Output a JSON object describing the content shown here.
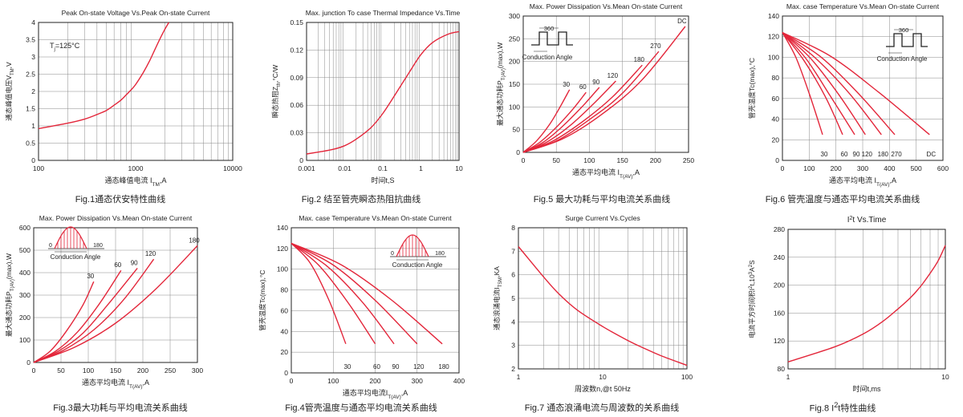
{
  "colors": {
    "curve": "#e3263a",
    "axis": "#222222",
    "grid": "#888888"
  },
  "charts": [
    {
      "id": "fig1",
      "title": "Peak On-state Voltage Vs.Peak On-state Current",
      "xlabel": "通态峰值电流 I",
      "xlabel_sub": "TM",
      "xlabel_tail": ",A",
      "ylabel": "通态峰值电压V",
      "ylabel_sub": "TM",
      "ylabel_tail": ",V",
      "caption": "Fig.1通态伏安特性曲线",
      "annotation": "T",
      "annotation_sub": "j",
      "annotation_tail": "=125°C",
      "xscale": "log",
      "xlim": [
        100,
        10000
      ],
      "xticks": [
        "100",
        "1000",
        "10000"
      ],
      "ylim": [
        0,
        4
      ],
      "yticks": [
        "0",
        "0.5",
        "1",
        "1.5",
        "2",
        "2.5",
        "3",
        "3.5",
        "4"
      ],
      "chart_data": {
        "type": "line",
        "x": [
          100,
          200,
          300,
          400,
          500,
          600,
          700,
          800,
          900,
          1000,
          1200,
          1400,
          1600,
          1800,
          2000,
          2200
        ],
        "series": [
          {
            "values": [
              0.92,
              1.08,
              1.2,
              1.33,
              1.45,
              1.6,
              1.74,
              1.9,
              2.05,
              2.2,
              2.55,
              2.9,
              3.25,
              3.55,
              3.8,
              4.0
            ]
          }
        ]
      }
    },
    {
      "id": "fig2",
      "title": "Max. junction To case Thermal Impedance Vs.Time",
      "xlabel": "时间t,S",
      "ylabel": "瞬态热阻Z",
      "ylabel_sub": "th",
      "ylabel_tail": ",°C/W",
      "caption": "Fig.2 结至管壳瞬态热阻抗曲线",
      "xscale": "log",
      "xlim": [
        0.001,
        10
      ],
      "xticks": [
        "0.001",
        "0.01",
        "0.1",
        "1",
        "10"
      ],
      "ylim": [
        0,
        0.15
      ],
      "yticks": [
        "0",
        "0.03",
        "0.06",
        "0.09",
        "0.12",
        "0.15"
      ],
      "chart_data": {
        "type": "line",
        "x": [
          0.001,
          0.002,
          0.005,
          0.01,
          0.02,
          0.05,
          0.1,
          0.2,
          0.5,
          1,
          2,
          5,
          10
        ],
        "series": [
          {
            "values": [
              0.007,
              0.009,
              0.012,
              0.016,
              0.023,
              0.036,
              0.051,
              0.07,
              0.096,
              0.115,
              0.128,
              0.137,
              0.14
            ]
          }
        ]
      }
    },
    {
      "id": "fig5",
      "title": "Max. Power Dissipation Vs.Mean On-state Current",
      "xlabel": "通态平均电流 I",
      "xlabel_sub": "T(AV)",
      "xlabel_tail": ",A",
      "ylabel": "最大通态功耗P",
      "ylabel_sub": "T(AV)",
      "ylabel_tail": "(max),W",
      "caption": "Fig.5 最大功耗与平均电流关系曲线",
      "inset": "square",
      "inset_label": "Conduction Angle",
      "inset_top": "360",
      "xlim": [
        0,
        250
      ],
      "xticks": [
        "0",
        "50",
        "100",
        "150",
        "200",
        "250"
      ],
      "ylim": [
        0,
        300
      ],
      "yticks": [
        "0",
        "50",
        "100",
        "150",
        "200",
        "250",
        "300"
      ],
      "chart_data": {
        "type": "line",
        "series": [
          {
            "name": "30",
            "x": [
              0,
              20,
              40,
              55,
              70
            ],
            "values": [
              0,
              25,
              62,
              98,
              138
            ]
          },
          {
            "name": "60",
            "x": [
              0,
              25,
              50,
              75,
              95
            ],
            "values": [
              0,
              22,
              55,
              95,
              132
            ]
          },
          {
            "name": "90",
            "x": [
              0,
              30,
              60,
              90,
              115
            ],
            "values": [
              0,
              22,
              58,
              102,
              143
            ]
          },
          {
            "name": "120",
            "x": [
              0,
              35,
              70,
              105,
              140
            ],
            "values": [
              0,
              22,
              58,
              105,
              157
            ]
          },
          {
            "name": "180",
            "x": [
              0,
              45,
              90,
              135,
              180
            ],
            "values": [
              0,
              25,
              68,
              122,
              192
            ]
          },
          {
            "name": "270",
            "x": [
              0,
              50,
              100,
              150,
              205
            ],
            "values": [
              0,
              25,
              72,
              130,
              222
            ]
          },
          {
            "name": "DC",
            "x": [
              0,
              60,
              120,
              180,
              245
            ],
            "values": [
              0,
              30,
              85,
              160,
              277
            ]
          }
        ]
      }
    },
    {
      "id": "fig6",
      "title": "Max. case Temperature Vs.Mean On-state Current",
      "xlabel": "通态平均电流 I",
      "xlabel_sub": "T(AV)",
      "xlabel_tail": ",A",
      "ylabel": "管壳温度Tc(max),°C",
      "caption": "Fig.6 管壳温度与通态平均电流关系曲线",
      "inset": "square",
      "inset_label": "Conduction Angle",
      "inset_top": "360",
      "xlim": [
        0,
        600
      ],
      "xticks": [
        "0",
        "100",
        "200",
        "300",
        "400",
        "500",
        "600"
      ],
      "ylim": [
        0,
        140
      ],
      "yticks": [
        "0",
        "20",
        "40",
        "60",
        "80",
        "100",
        "120",
        "140"
      ],
      "chart_data": {
        "type": "line",
        "series": [
          {
            "name": "30",
            "x": [
              0,
              50,
              100,
              150
            ],
            "values": [
              124,
              100,
              65,
              25
            ]
          },
          {
            "name": "60",
            "x": [
              0,
              80,
              160,
              225
            ],
            "values": [
              124,
              97,
              62,
              25
            ]
          },
          {
            "name": "90",
            "x": [
              0,
              90,
              180,
              270
            ],
            "values": [
              124,
              98,
              62,
              25
            ]
          },
          {
            "name": "120",
            "x": [
              0,
              105,
              210,
              310
            ],
            "values": [
              124,
              99,
              64,
              25
            ]
          },
          {
            "name": "180",
            "x": [
              0,
              120,
              250,
              370
            ],
            "values": [
              124,
              100,
              65,
              25
            ]
          },
          {
            "name": "270",
            "x": [
              0,
              140,
              280,
              420
            ],
            "values": [
              124,
              101,
              66,
              25
            ]
          },
          {
            "name": "DC",
            "x": [
              0,
              180,
              360,
              550
            ],
            "values": [
              124,
              101,
              66,
              25
            ]
          }
        ]
      }
    },
    {
      "id": "fig3",
      "title": "Max. Power Dissipation Vs.Mean On-state Current",
      "xlabel": "通态平均电流 I",
      "xlabel_sub": "T(AV)",
      "xlabel_tail": ",A",
      "ylabel": "最大通态功耗P",
      "ylabel_sub": "T(AV)",
      "ylabel_tail": "(max),W",
      "caption": "Fig.3最大功耗与平均电流关系曲线",
      "inset": "sine",
      "inset_label": "Conduction Angle",
      "inset_left": "0",
      "inset_right": "180",
      "xlim": [
        0,
        300
      ],
      "xticks": [
        "0",
        "50",
        "100",
        "150",
        "200",
        "250",
        "300"
      ],
      "ylim": [
        0,
        600
      ],
      "yticks": [
        "0",
        "100",
        "200",
        "300",
        "400",
        "500",
        "600"
      ],
      "chart_data": {
        "type": "line",
        "series": [
          {
            "name": "30",
            "x": [
              0,
              30,
              60,
              90,
              110
            ],
            "values": [
              0,
              50,
              140,
              255,
              360
            ]
          },
          {
            "name": "60",
            "x": [
              0,
              40,
              80,
              120,
              160
            ],
            "values": [
              0,
              50,
              135,
              260,
              410
            ]
          },
          {
            "name": "90",
            "x": [
              0,
              45,
              90,
              135,
              190
            ],
            "values": [
              0,
              50,
              130,
              255,
              420
            ]
          },
          {
            "name": "120",
            "x": [
              0,
              55,
              110,
              165,
              220
            ],
            "values": [
              0,
              55,
              145,
              280,
              460
            ]
          },
          {
            "name": "180",
            "x": [
              0,
              75,
              150,
              225,
              300
            ],
            "values": [
              0,
              68,
              175,
              330,
              520
            ]
          }
        ]
      }
    },
    {
      "id": "fig4",
      "title": "Max. case Temperature Vs.Mean On-state Current",
      "xlabel": "通态平均电流I",
      "xlabel_sub": "T(AV)",
      "xlabel_tail": ",A",
      "ylabel": "管壳温度Tc(max),°C",
      "caption": "Fig.4管壳温度与通态平均电流关系曲线",
      "inset": "sine",
      "inset_label": "Conduction Angle",
      "inset_left": "0",
      "inset_right": "180",
      "xlim": [
        0,
        400
      ],
      "xticks": [
        "0",
        "100",
        "200",
        "300",
        "400"
      ],
      "ylim": [
        0,
        140
      ],
      "yticks": [
        "0",
        "20",
        "40",
        "60",
        "80",
        "100",
        "120",
        "140"
      ],
      "chart_data": {
        "type": "line",
        "series": [
          {
            "name": "30",
            "x": [
              0,
              45,
              90,
              130
            ],
            "values": [
              125,
              106,
              70,
              28
            ]
          },
          {
            "name": "60",
            "x": [
              0,
              65,
              135,
              200
            ],
            "values": [
              125,
              104,
              68,
              28
            ]
          },
          {
            "name": "90",
            "x": [
              0,
              85,
              170,
              245
            ],
            "values": [
              125,
              103,
              68,
              28
            ]
          },
          {
            "name": "120",
            "x": [
              0,
              100,
              200,
              300
            ],
            "values": [
              125,
              104,
              70,
              28
            ]
          },
          {
            "name": "180",
            "x": [
              0,
              120,
              240,
              360
            ],
            "values": [
              125,
              104,
              70,
              28
            ]
          }
        ]
      }
    },
    {
      "id": "fig7",
      "title": "Surge Current Vs.Cycles",
      "xlabel": "周波数n,@t 50Hz",
      "ylabel": "通态浪涌电流I",
      "ylabel_sub": "TSM",
      "ylabel_tail": ",KA",
      "caption": "Fig.7 通态浪涌电流与周波数的关系曲线",
      "xscale": "log",
      "xlim": [
        1,
        100
      ],
      "xticks": [
        "1",
        "10",
        "100"
      ],
      "ylim": [
        2,
        8
      ],
      "yticks": [
        "2",
        "3",
        "4",
        "5",
        "6",
        "7",
        "8"
      ],
      "chart_data": {
        "type": "line",
        "x": [
          1,
          2,
          3,
          5,
          10,
          20,
          30,
          50,
          100
        ],
        "series": [
          {
            "values": [
              7.2,
              5.9,
              5.2,
              4.5,
              3.8,
              3.2,
              2.9,
              2.55,
              2.15
            ]
          }
        ]
      }
    },
    {
      "id": "fig8",
      "title": "I",
      "title_sup": "2",
      "title_tail": "t  Vs.Time",
      "xlabel": "时间t,ms",
      "ylabel": "电流平方时间积I",
      "ylabel_sup": "2",
      "ylabel_tail": "t,10",
      "ylabel_sup2": "3",
      "ylabel_tail2": "A",
      "ylabel_sup3": "2",
      "ylabel_tail3": "S",
      "caption": "Fig.8 I",
      "caption_sup": "2",
      "caption_tail": "t特性曲线",
      "xscale": "log",
      "xlim": [
        1,
        10
      ],
      "xticks": [
        "1",
        "10"
      ],
      "ylim": [
        80,
        280
      ],
      "yticks": [
        "80",
        "120",
        "160",
        "200",
        "240",
        "280"
      ],
      "chart_data": {
        "type": "line",
        "x": [
          1,
          2,
          3,
          4,
          5,
          6,
          7,
          8,
          9,
          10
        ],
        "series": [
          {
            "values": [
              90,
              112,
              130,
              148,
              166,
              182,
              199,
              217,
              235,
              257
            ]
          }
        ]
      }
    }
  ]
}
